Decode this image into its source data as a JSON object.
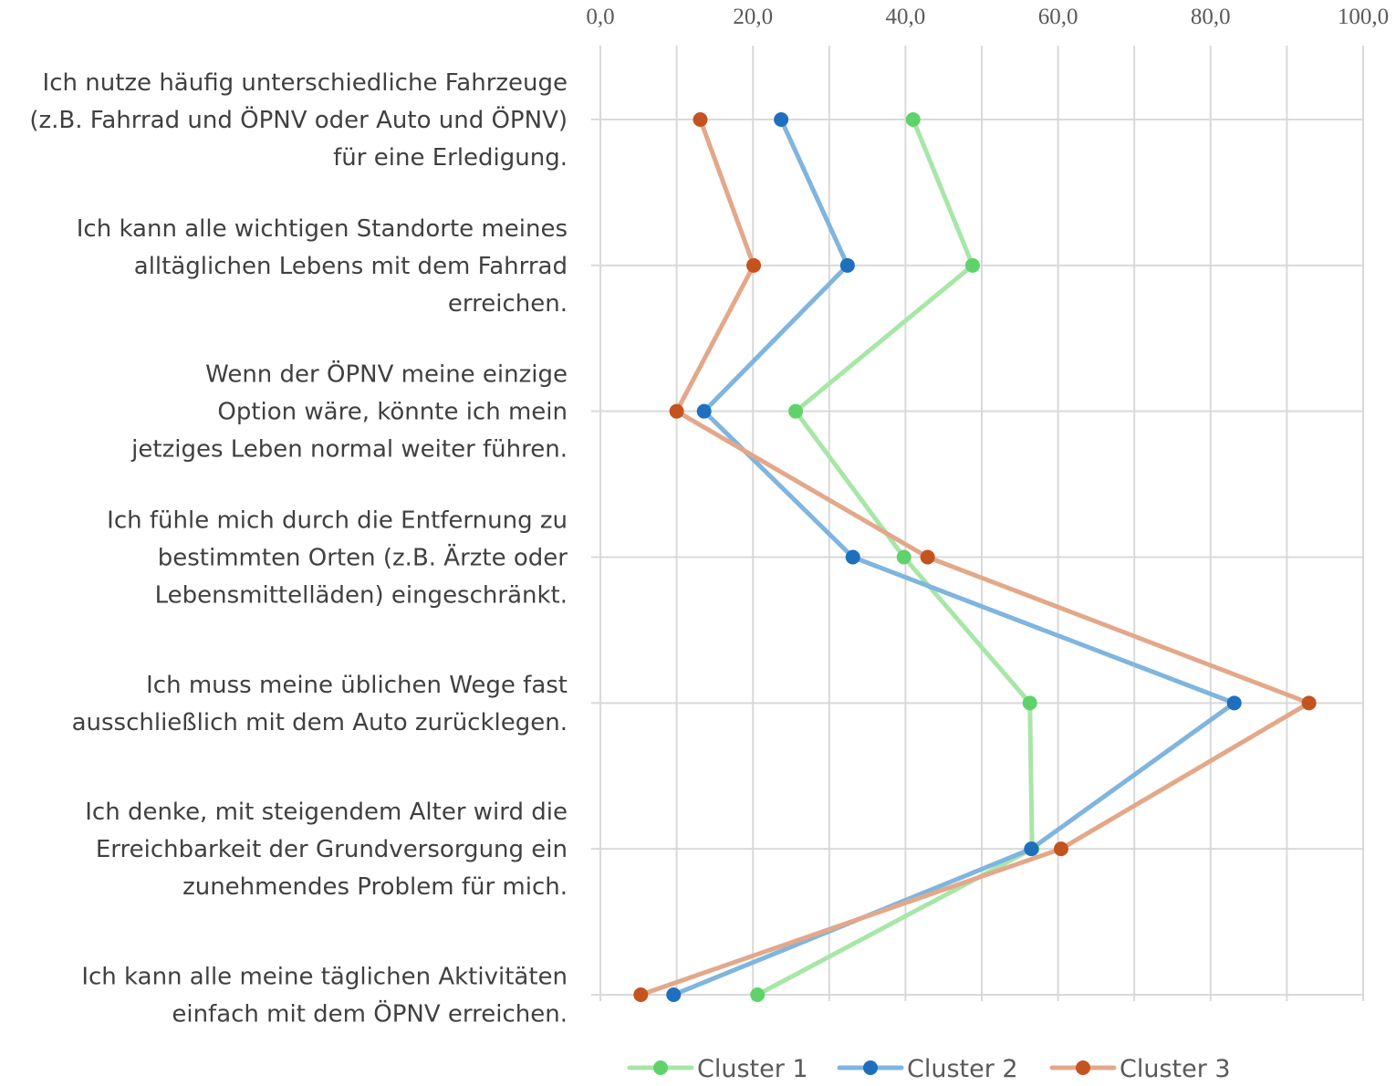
{
  "chart_data": {
    "type": "line",
    "orientation": "horizontal-values",
    "x_axis": {
      "position": "top",
      "min": 0,
      "max": 100,
      "major_step": 20,
      "minor_step": 10,
      "tick_labels": [
        "0,0",
        "20,0",
        "40,0",
        "60,0",
        "80,0",
        "100,0"
      ]
    },
    "categories": [
      [
        "Ich nutze häufig unterschiedliche Fahrzeuge",
        "(z.B. Fahrrad und ÖPNV oder Auto und ÖPNV)",
        "für eine Erledigung."
      ],
      [
        "Ich kann alle wichtigen Standorte meines",
        "alltäglichen Lebens mit dem Fahrrad",
        "erreichen."
      ],
      [
        "Wenn der ÖPNV meine einzige",
        "Option wäre, könnte ich mein",
        "jetziges Leben normal weiter führen."
      ],
      [
        "Ich fühle mich durch die Entfernung zu",
        "bestimmten Orten (z.B. Ärzte oder",
        "Lebensmittelläden) eingeschränkt."
      ],
      [
        "Ich muss meine üblichen Wege fast",
        "ausschließlich mit dem Auto zurücklegen."
      ],
      [
        "Ich denke, mit steigendem Alter wird die",
        "Erreichbarkeit der Grundversorgung ein",
        "zunehmendes Problem für mich."
      ],
      [
        "Ich kann alle meine täglichen Aktivitäten",
        "einfach mit dem ÖPNV erreichen."
      ]
    ],
    "series": [
      {
        "name": "Cluster 1",
        "line_color": "#a8e6a8",
        "marker_color": "#5fd36a",
        "values": [
          41.0,
          48.8,
          25.6,
          39.8,
          56.3,
          56.6,
          20.6
        ]
      },
      {
        "name": "Cluster 2",
        "line_color": "#7fb5de",
        "marker_color": "#1f6fbf",
        "values": [
          23.7,
          32.4,
          13.6,
          33.1,
          83.1,
          56.5,
          9.6
        ]
      },
      {
        "name": "Cluster 3",
        "line_color": "#e3a88a",
        "marker_color": "#c4541f",
        "values": [
          13.1,
          20.1,
          10.0,
          42.9,
          92.9,
          60.4,
          5.3
        ]
      }
    ],
    "grid": true,
    "legend": "bottom"
  }
}
